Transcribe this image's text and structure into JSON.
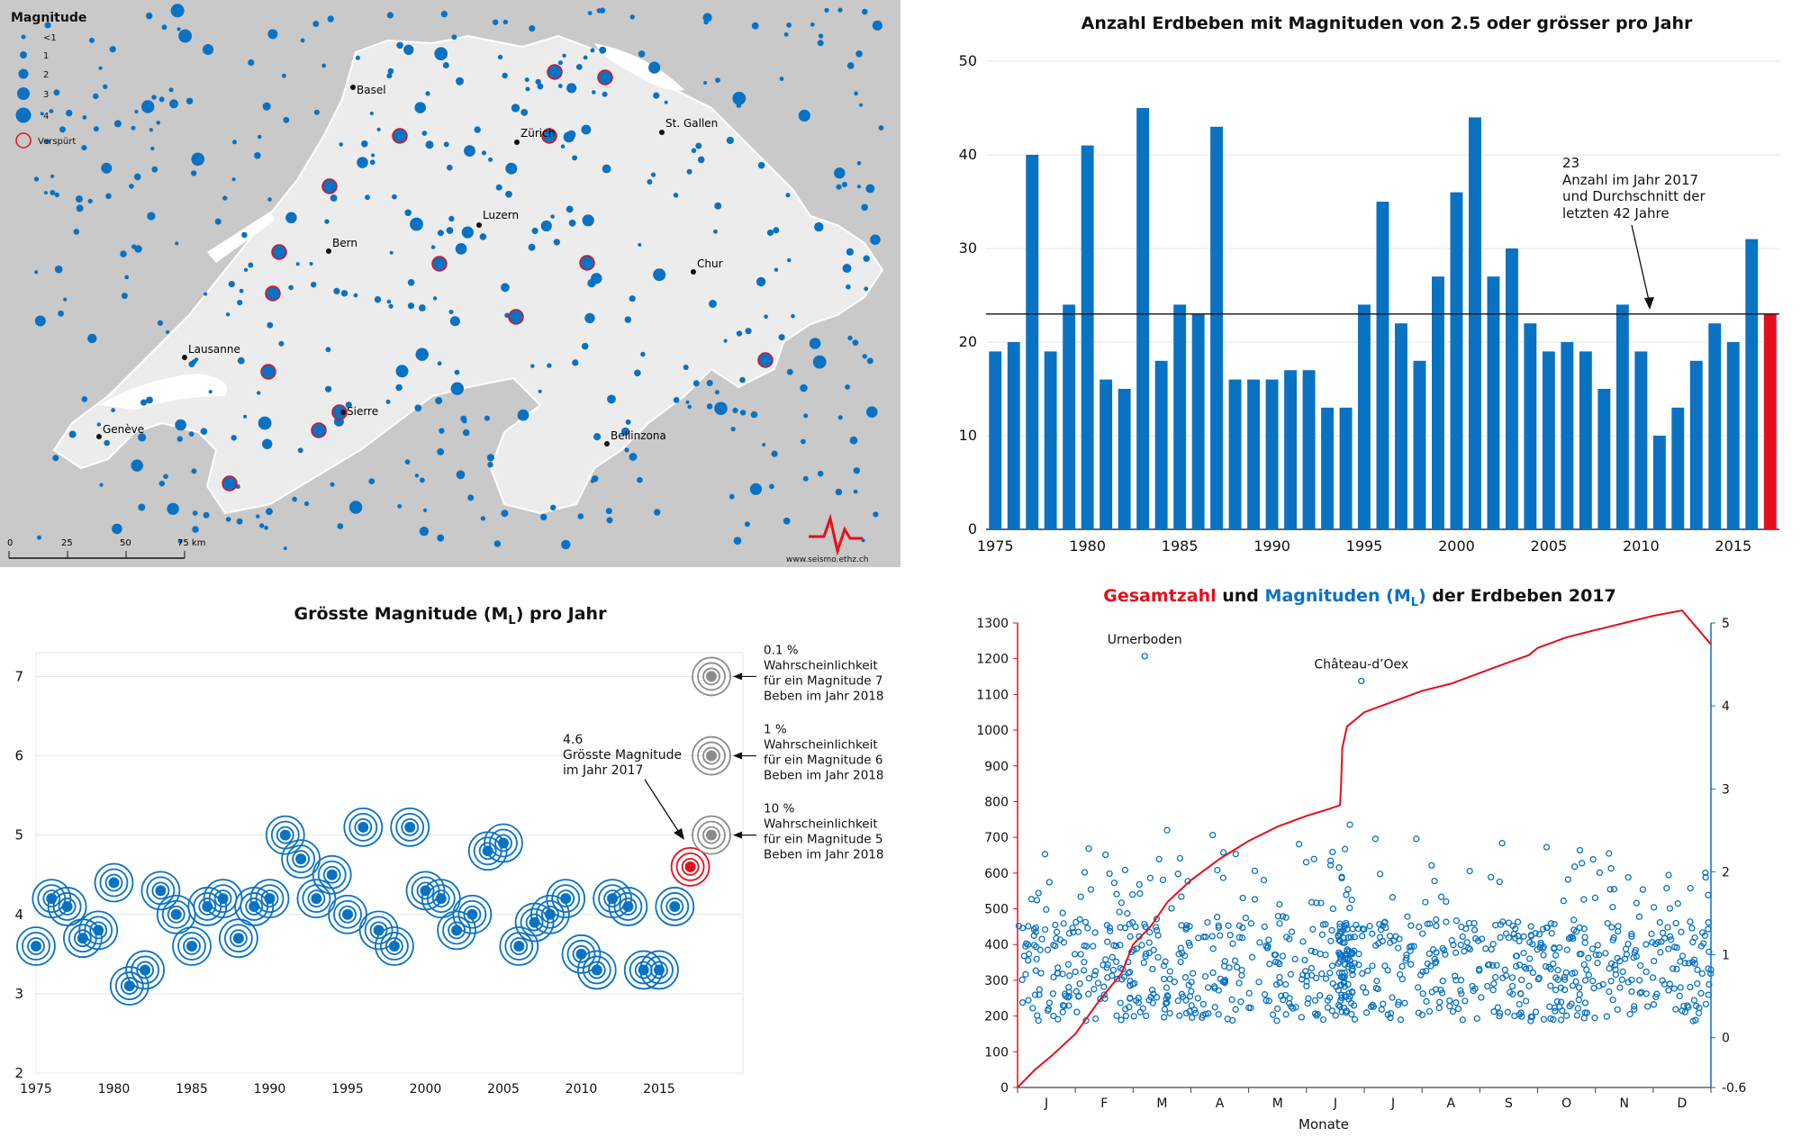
{
  "colors": {
    "blue": "#0a72c2",
    "red": "#e3101b",
    "gray": "#8c8c8c",
    "grid": "#e6e6e6",
    "map_bg": "#c8c8c8",
    "map_land": "#ebebeb"
  },
  "map": {
    "legend_title": "Magnitude",
    "legend_items": [
      "<1",
      "1",
      "2",
      "3",
      "4"
    ],
    "legend_felt": "Verspürt",
    "cities": [
      "Basel",
      "Zürich",
      "St. Gallen",
      "Luzern",
      "Bern",
      "Chur",
      "Lausanne",
      "Sierre",
      "Genève",
      "Bellinzona"
    ],
    "scale_labels": [
      "0",
      "25",
      "50",
      "75 km"
    ],
    "credit": "www.seismo.ethz.ch",
    "logo_icon": "seismogram-logo-icon"
  },
  "chart_data": [
    {
      "type": "bar",
      "title": "Anzahl Erdbeben mit Magnituden von 2.5 oder grösser pro Jahr",
      "x": [
        1975,
        1976,
        1977,
        1978,
        1979,
        1980,
        1981,
        1982,
        1983,
        1984,
        1985,
        1986,
        1987,
        1988,
        1989,
        1990,
        1991,
        1992,
        1993,
        1994,
        1995,
        1996,
        1997,
        1998,
        1999,
        2000,
        2001,
        2002,
        2003,
        2004,
        2005,
        2006,
        2007,
        2008,
        2009,
        2010,
        2011,
        2012,
        2013,
        2014,
        2015,
        2016,
        2017
      ],
      "values": [
        19,
        20,
        40,
        19,
        24,
        41,
        16,
        15,
        45,
        18,
        24,
        23,
        43,
        16,
        16,
        16,
        17,
        17,
        13,
        13,
        24,
        35,
        22,
        18,
        27,
        36,
        44,
        27,
        30,
        22,
        19,
        20,
        19,
        15,
        24,
        19,
        10,
        13,
        18,
        22,
        20,
        31,
        23
      ],
      "highlight_year": 2017,
      "ylim": [
        0,
        50
      ],
      "yticks": [
        "0",
        "10",
        "20",
        "30",
        "40",
        "50"
      ],
      "xticks": [
        "1975",
        "1980",
        "1985",
        "1990",
        "1995",
        "2000",
        "2005",
        "2010",
        "2015"
      ],
      "average_line": 23,
      "annotation": [
        "23",
        "Anzahl im Jahr 2017",
        "und Durchschnitt der",
        "letzten 42 Jahre"
      ]
    },
    {
      "type": "scatter",
      "title": "Grösste Magnitude (M",
      "title_sub": "L",
      "title_end": ") pro Jahr",
      "x": [
        1975,
        1976,
        1977,
        1978,
        1979,
        1980,
        1981,
        1982,
        1983,
        1984,
        1985,
        1986,
        1987,
        1988,
        1989,
        1990,
        1991,
        1992,
        1993,
        1994,
        1995,
        1996,
        1997,
        1998,
        1999,
        2000,
        2001,
        2002,
        2003,
        2004,
        2005,
        2006,
        2007,
        2008,
        2009,
        2010,
        2011,
        2012,
        2013,
        2014,
        2015,
        2016,
        2017
      ],
      "y": [
        3.6,
        4.2,
        4.1,
        3.7,
        3.8,
        4.4,
        3.1,
        3.3,
        4.3,
        4.0,
        3.6,
        4.1,
        4.2,
        3.7,
        4.1,
        4.2,
        5.0,
        4.7,
        4.2,
        4.5,
        4.0,
        5.1,
        3.8,
        3.6,
        5.1,
        4.3,
        4.2,
        3.8,
        4.0,
        4.8,
        4.9,
        3.6,
        3.9,
        4.0,
        4.2,
        3.5,
        3.3,
        4.2,
        4.1,
        3.3,
        3.3,
        4.1,
        4.6
      ],
      "highlight_year": 2017,
      "ylim": [
        2,
        7.3
      ],
      "yticks": [
        "2",
        "3",
        "4",
        "5",
        "6",
        "7"
      ],
      "xticks": [
        "1975",
        "1980",
        "1985",
        "1990",
        "1995",
        "2000",
        "2005",
        "2010",
        "2015"
      ],
      "probability_markers": [
        {
          "magnitude": 7,
          "lines": [
            "0.1 %",
            "Wahrscheinlichkeit",
            "für ein Magnitude 7",
            "Beben im Jahr 2018"
          ]
        },
        {
          "magnitude": 6,
          "lines": [
            "1 %",
            "Wahrscheinlichkeit",
            "für ein Magnitude 6",
            "Beben im Jahr 2018"
          ]
        },
        {
          "magnitude": 5,
          "lines": [
            "10 %",
            "Wahrscheinlichkeit",
            "für ein Magnitude 5",
            "Beben im Jahr 2018"
          ]
        }
      ],
      "annotation": [
        "4.6",
        "Grösste Magnitude",
        "im Jahr 2017"
      ]
    },
    {
      "type": "line",
      "title_part1": "Gesamtzahl",
      "title_part2": " und ",
      "title_part3": "Magnituden (M",
      "title_sub": "L",
      "title_part4": ")",
      "title_part5": " der Erdbeben 2017",
      "xlabel": "Monate",
      "months": [
        "J",
        "F",
        "M",
        "A",
        "M",
        "J",
        "J",
        "A",
        "S",
        "O",
        "N",
        "D"
      ],
      "cumulative_x_month": [
        0,
        0.3,
        0.6,
        1.0,
        1.4,
        1.8,
        2.0,
        2.3,
        2.6,
        3.0,
        3.5,
        4.0,
        4.5,
        5.0,
        5.4,
        5.58,
        5.6,
        5.62,
        5.7,
        6.0,
        6.5,
        7.0,
        7.5,
        8.0,
        8.5,
        8.85,
        9.0,
        9.5,
        10.0,
        10.5,
        11.0,
        11.5,
        12.0
      ],
      "cumulative_y": [
        0,
        50,
        90,
        150,
        240,
        320,
        400,
        450,
        520,
        580,
        640,
        690,
        730,
        760,
        780,
        790,
        850,
        950,
        1010,
        1050,
        1080,
        1110,
        1130,
        1160,
        1190,
        1210,
        1230,
        1260,
        1280,
        1300,
        1320,
        1335,
        1240
      ],
      "left_ylim": [
        0,
        1300
      ],
      "left_yticks": [
        "0",
        "100",
        "200",
        "300",
        "400",
        "500",
        "600",
        "700",
        "800",
        "900",
        "1000",
        "1100",
        "1200",
        "1300"
      ],
      "right_ylim": [
        -0.6,
        5
      ],
      "right_yticks": [
        "-0.6",
        "0",
        "1",
        "2",
        "3",
        "4",
        "5"
      ],
      "named_events": [
        {
          "label": "Urnerboden",
          "month": 2.2,
          "magnitude": 4.6
        },
        {
          "label": "Château-d’Oex",
          "month": 5.95,
          "magnitude": 4.3
        }
      ]
    }
  ]
}
